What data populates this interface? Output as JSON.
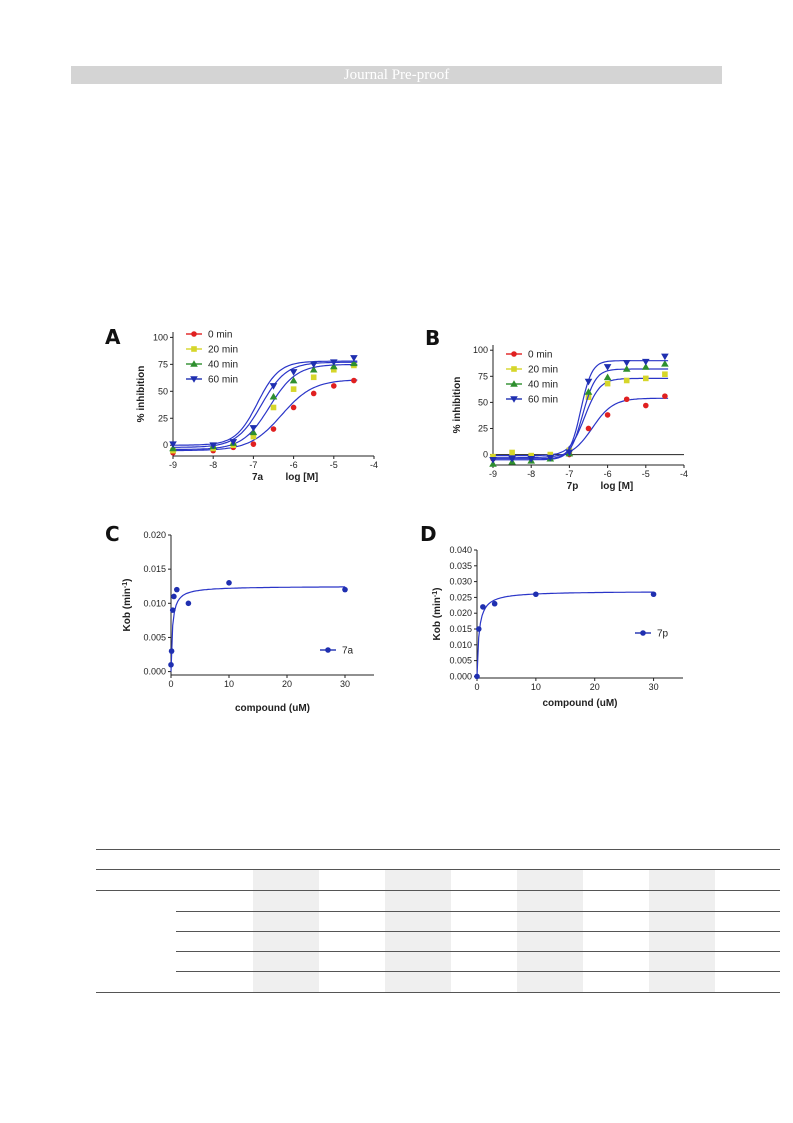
{
  "header": {
    "banner_text": "Journal Pre-proof"
  },
  "colors": {
    "red": "#e02020",
    "yellow": "#d6d62a",
    "green": "#2e8f2e",
    "blue": "#1f2fb0",
    "fit": "#2a35c8",
    "banner": "#d4d4d4"
  },
  "chart_data": [
    {
      "panel": "A",
      "type": "scatter",
      "xlabel_compound": "7a",
      "xlabel": "log [M]",
      "ylabel": "% inhibition",
      "xlim": [
        -9,
        -4
      ],
      "ylim": [
        -10,
        105
      ],
      "xticks": [
        "-9",
        "-8",
        "-7",
        "-6",
        "-5",
        "-4"
      ],
      "yticks": [
        "0",
        "25",
        "50",
        "75",
        "100"
      ],
      "legend_position": "top-left",
      "series": [
        {
          "name": "0 min",
          "color": "#e02020",
          "marker": "circle",
          "x": [
            -9,
            -8,
            -7.5,
            -7,
            -6.5,
            -6,
            -5.5,
            -5,
            -4.5
          ],
          "y": [
            -7,
            -5,
            -2,
            1,
            15,
            35,
            48,
            55,
            60
          ],
          "fit": {
            "bottom": -5,
            "top": 61,
            "logec50": -6.3,
            "hill": 1.1
          }
        },
        {
          "name": "20 min",
          "color": "#d6d62a",
          "marker": "square",
          "x": [
            -9,
            -8,
            -7.5,
            -7,
            -6.5,
            -6,
            -5.5,
            -5,
            -4.5
          ],
          "y": [
            -5,
            -3,
            0,
            8,
            35,
            52,
            63,
            70,
            74
          ],
          "fit": {
            "bottom": -4,
            "top": 75,
            "logec50": -6.6,
            "hill": 1.3
          }
        },
        {
          "name": "40 min",
          "color": "#2e8f2e",
          "marker": "triangle-up",
          "x": [
            -9,
            -8,
            -7.5,
            -7,
            -6.5,
            -6,
            -5.5,
            -5,
            -4.5
          ],
          "y": [
            -3,
            -1,
            2,
            12,
            45,
            60,
            70,
            73,
            76
          ],
          "fit": {
            "bottom": -2,
            "top": 77,
            "logec50": -6.8,
            "hill": 1.4
          }
        },
        {
          "name": "60 min",
          "color": "#1f2fb0",
          "marker": "triangle-down",
          "x": [
            -9,
            -8,
            -7.5,
            -7,
            -6.5,
            -6,
            -5.5,
            -5,
            -4.5
          ],
          "y": [
            1,
            0,
            3,
            16,
            55,
            68,
            75,
            77,
            81
          ],
          "fit": {
            "bottom": 0,
            "top": 78,
            "logec50": -6.9,
            "hill": 1.6
          }
        }
      ]
    },
    {
      "panel": "B",
      "type": "scatter",
      "xlabel_compound": "7p",
      "xlabel": "log [M]",
      "ylabel": "% inhibition",
      "xlim": [
        -9,
        -4
      ],
      "ylim": [
        -10,
        105
      ],
      "xticks": [
        "-9",
        "-8",
        "-7",
        "-6",
        "-5",
        "-4"
      ],
      "yticks": [
        "0",
        "25",
        "50",
        "75",
        "100"
      ],
      "legend_position": "top-left",
      "series": [
        {
          "name": "0 min",
          "color": "#e02020",
          "marker": "circle",
          "x": [
            -9,
            -8.5,
            -8,
            -7.5,
            -7,
            -6.5,
            -6,
            -5.5,
            -5,
            -4.5
          ],
          "y": [
            -4,
            -3,
            -3,
            -2,
            0,
            25,
            38,
            53,
            47,
            56
          ],
          "fit": {
            "bottom": -3,
            "top": 54,
            "logec50": -6.4,
            "hill": 1.6
          }
        },
        {
          "name": "20 min",
          "color": "#d6d62a",
          "marker": "square",
          "x": [
            -9,
            -8.5,
            -8,
            -7.5,
            -7,
            -6.5,
            -6,
            -5.5,
            -5,
            -4.5
          ],
          "y": [
            -2,
            2,
            -1,
            0,
            4,
            55,
            68,
            71,
            73,
            77
          ],
          "fit": {
            "bottom": -1,
            "top": 73,
            "logec50": -6.6,
            "hill": 2.2
          }
        },
        {
          "name": "40 min",
          "color": "#2e8f2e",
          "marker": "triangle-up",
          "x": [
            -9,
            -8.5,
            -8,
            -7.5,
            -7,
            -6.5,
            -6,
            -5.5,
            -5,
            -4.5
          ],
          "y": [
            -9,
            -7,
            -6,
            -4,
            1,
            60,
            74,
            82,
            84,
            87
          ],
          "fit": {
            "bottom": -5,
            "top": 82,
            "logec50": -6.65,
            "hill": 2.6
          }
        },
        {
          "name": "60 min",
          "color": "#1f2fb0",
          "marker": "triangle-down",
          "x": [
            -9,
            -8.5,
            -8,
            -7.5,
            -7,
            -6.5,
            -6,
            -5.5,
            -5,
            -4.5
          ],
          "y": [
            -5,
            -4,
            -4,
            -3,
            2,
            70,
            84,
            88,
            89,
            94
          ],
          "fit": {
            "bottom": -4,
            "top": 90,
            "logec50": -6.7,
            "hill": 3.0
          }
        }
      ]
    },
    {
      "panel": "C",
      "type": "scatter",
      "xlabel": "compound (uM)",
      "ylabel": "Kob (min-1)",
      "xlim": [
        0,
        35
      ],
      "ylim": [
        -0.0005,
        0.02
      ],
      "xticks": [
        "0",
        "10",
        "20",
        "30"
      ],
      "yticks": [
        "0.000",
        "0.005",
        "0.010",
        "0.015",
        "0.020"
      ],
      "legend_position": "bottom-right",
      "series": [
        {
          "name": "7a",
          "color": "#1f2fb0",
          "marker": "circle",
          "x": [
            0,
            0.1,
            0.3,
            0.5,
            1,
            3,
            10,
            30
          ],
          "y": [
            0.001,
            0.003,
            0.009,
            0.011,
            0.012,
            0.01,
            0.013,
            0.012
          ],
          "fit": {
            "kmax": 0.0125,
            "kd": 0.25
          }
        }
      ]
    },
    {
      "panel": "D",
      "type": "scatter",
      "xlabel": "compound (uM)",
      "ylabel": "Kob (min-1)",
      "xlim": [
        0,
        35
      ],
      "ylim": [
        -0.0005,
        0.04
      ],
      "xticks": [
        "0",
        "10",
        "20",
        "30"
      ],
      "yticks": [
        "0.000",
        "0.005",
        "0.010",
        "0.015",
        "0.020",
        "0.025",
        "0.030",
        "0.035",
        "0.040"
      ],
      "legend_position": "bottom-right",
      "series": [
        {
          "name": "7p",
          "color": "#1f2fb0",
          "marker": "circle",
          "x": [
            0,
            0.3,
            1,
            3,
            10,
            30
          ],
          "y": [
            0.0,
            0.015,
            0.022,
            0.023,
            0.026,
            0.026
          ],
          "fit": {
            "kmax": 0.027,
            "kd": 0.35
          }
        }
      ]
    }
  ]
}
